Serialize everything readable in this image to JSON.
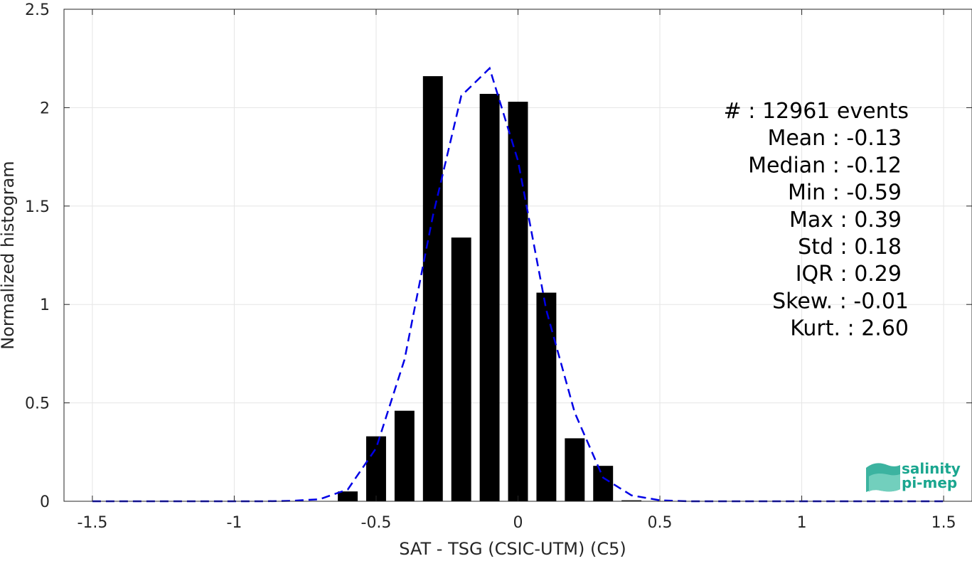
{
  "chart_data": {
    "type": "bar",
    "xlabel": "SAT - TSG (CSIC-UTM) (C5)",
    "ylabel": "Normalized histogram",
    "xlim": [
      -1.6,
      1.6
    ],
    "ylim": [
      0,
      2.5
    ],
    "xticks": [
      -1.5,
      -1,
      -0.5,
      0,
      0.5,
      1,
      1.5
    ],
    "xtick_labels": [
      "-1.5",
      "-1",
      "-0.5",
      "0",
      "0.5",
      "1",
      "1.5"
    ],
    "yticks": [
      0,
      0.5,
      1,
      1.5,
      2,
      2.5
    ],
    "ytick_labels": [
      "0",
      "0.5",
      "1",
      "1.5",
      "2",
      "2.5"
    ],
    "grid": true,
    "bar_color": "#000000",
    "bar_width": 0.07,
    "bars": {
      "x": [
        -0.6,
        -0.5,
        -0.4,
        -0.3,
        -0.2,
        -0.1,
        0.0,
        0.1,
        0.2,
        0.3,
        0.4
      ],
      "values": [
        0.05,
        0.33,
        0.46,
        2.16,
        1.34,
        2.07,
        2.03,
        1.06,
        0.32,
        0.18,
        0.005
      ]
    },
    "fit_line": {
      "color": "#0000e6",
      "style": "dashed",
      "x": [
        -1.5,
        -1.4,
        -1.3,
        -1.2,
        -1.1,
        -1.0,
        -0.9,
        -0.8,
        -0.7,
        -0.6,
        -0.5,
        -0.4,
        -0.3,
        -0.2,
        -0.1,
        0.0,
        0.1,
        0.2,
        0.3,
        0.4,
        0.5,
        0.6,
        0.7,
        0.8,
        0.9,
        1.0,
        1.1,
        1.2,
        1.3,
        1.4,
        1.5
      ],
      "y": [
        0,
        0,
        0,
        0,
        0,
        0,
        0,
        0.002,
        0.01,
        0.06,
        0.27,
        0.72,
        1.45,
        2.06,
        2.2,
        1.73,
        0.97,
        0.45,
        0.12,
        0.03,
        0.005,
        0,
        0,
        0,
        0,
        0,
        0,
        0,
        0,
        0,
        0
      ]
    },
    "stats": [
      {
        "label": "#  : 12961 events"
      },
      {
        "label": "Mean : -0.13"
      },
      {
        "label": "Median : -0.12"
      },
      {
        "label": "Min : -0.59"
      },
      {
        "label": "Max : 0.39"
      },
      {
        "label": "Std : 0.18"
      },
      {
        "label": "IQR : 0.29"
      },
      {
        "label": "Skew. : -0.01"
      },
      {
        "label": "Kurt. : 2.60"
      }
    ]
  },
  "logo": {
    "line1": "salinity",
    "line2": "pi-mep"
  }
}
